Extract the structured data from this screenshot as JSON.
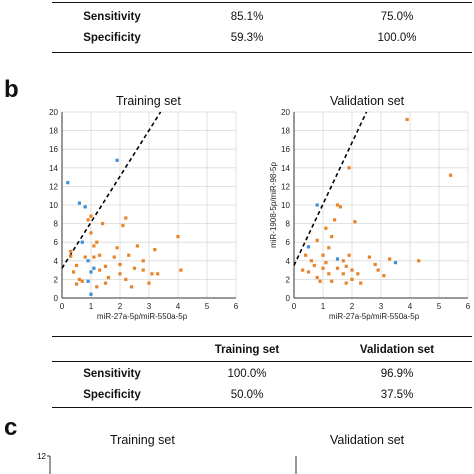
{
  "table_a": {
    "rows": [
      {
        "label": "Sensitivity",
        "v1": "85.1%",
        "v2": "75.0%"
      },
      {
        "label": "Specificity",
        "v1": "59.3%",
        "v2": "100.0%"
      }
    ]
  },
  "panel_b": {
    "letter": "b",
    "titles": [
      "Training set",
      "Validation set"
    ]
  },
  "table_b": {
    "headers": [
      "",
      "Training set",
      "Validation set"
    ],
    "rows": [
      {
        "label": "Sensitivity",
        "v1": "100.0%",
        "v2": "96.9%"
      },
      {
        "label": "Specificity",
        "v1": "50.0%",
        "v2": "37.5%"
      }
    ]
  },
  "panel_c": {
    "letter": "c",
    "titles": [
      "Training set",
      "Validation set"
    ],
    "y_top_tick": "12"
  },
  "colors": {
    "orange": "#e8832a",
    "blue": "#3b8fd6",
    "grid": "#d9d9d9"
  },
  "chart_data": [
    {
      "type": "scatter",
      "title": "Training set",
      "xlabel": "miR-27a-5p/miR-550a-5p",
      "ylabel": "",
      "xlim": [
        0,
        6
      ],
      "ylim": [
        0,
        20
      ],
      "xticks": [
        "0",
        "1",
        "2",
        "3",
        "4",
        "5",
        "6"
      ],
      "yticks": [
        "0",
        "2",
        "4",
        "6",
        "8",
        "10",
        "12",
        "14",
        "16",
        "18",
        "20"
      ],
      "grid": true,
      "cutoff_line": {
        "style": "dashed",
        "x": [
          0,
          3.4
        ],
        "y": [
          3.2,
          20
        ]
      },
      "series": [
        {
          "color": "#3b8fd6",
          "points": [
            [
              0.2,
              12.4
            ],
            [
              0.6,
              10.2
            ],
            [
              0.8,
              9.8
            ],
            [
              1.9,
              14.8
            ],
            [
              0.7,
              6
            ],
            [
              0.9,
              4
            ],
            [
              0.9,
              1.8
            ],
            [
              1.0,
              2.8
            ],
            [
              1.0,
              0.4
            ],
            [
              1.1,
              3.2
            ]
          ]
        },
        {
          "color": "#e8832a",
          "points": [
            [
              0.3,
              5
            ],
            [
              0.5,
              3.5
            ],
            [
              0.5,
              1.5
            ],
            [
              0.3,
              4.5
            ],
            [
              0.4,
              2.8
            ],
            [
              0.6,
              2
            ],
            [
              0.7,
              1.8
            ],
            [
              0.8,
              4.4
            ],
            [
              0.9,
              8.4
            ],
            [
              1.0,
              8.8
            ],
            [
              1.0,
              7
            ],
            [
              1.1,
              4.4
            ],
            [
              1.1,
              5.6
            ],
            [
              1.2,
              6
            ],
            [
              1.2,
              1.2
            ],
            [
              1.3,
              3
            ],
            [
              1.3,
              4.6
            ],
            [
              1.4,
              8
            ],
            [
              1.5,
              1.6
            ],
            [
              1.5,
              3.4
            ],
            [
              1.6,
              2.2
            ],
            [
              1.8,
              4.4
            ],
            [
              1.9,
              5.4
            ],
            [
              2.0,
              3.6
            ],
            [
              2.0,
              2.6
            ],
            [
              2.1,
              7.8
            ],
            [
              2.2,
              8.6
            ],
            [
              2.2,
              2
            ],
            [
              2.3,
              4.6
            ],
            [
              2.4,
              1.2
            ],
            [
              2.5,
              3.2
            ],
            [
              2.6,
              5.6
            ],
            [
              2.8,
              4
            ],
            [
              2.8,
              3
            ],
            [
              3.0,
              1.6
            ],
            [
              3.1,
              2.6
            ],
            [
              3.2,
              5.2
            ],
            [
              3.3,
              2.6
            ],
            [
              4.0,
              6.6
            ],
            [
              4.1,
              3
            ]
          ]
        }
      ]
    },
    {
      "type": "scatter",
      "title": "Validation set",
      "xlabel": "miR-27a-5p/miR-550a-5p",
      "ylabel": "miR-1908-5p/miR-98-5p",
      "xlim": [
        0,
        6
      ],
      "ylim": [
        0,
        20
      ],
      "xticks": [
        "0",
        "1",
        "2",
        "3",
        "4",
        "5",
        "6"
      ],
      "yticks": [
        "0",
        "2",
        "4",
        "6",
        "8",
        "10",
        "12",
        "14",
        "16",
        "18",
        "20"
      ],
      "grid": true,
      "cutoff_line": {
        "style": "dashed",
        "x": [
          0,
          2.5
        ],
        "y": [
          3.5,
          20
        ]
      },
      "series": [
        {
          "color": "#3b8fd6",
          "points": [
            [
              0.5,
              5.5
            ],
            [
              0.8,
              10
            ],
            [
              1.5,
              4.2
            ],
            [
              3.5,
              3.8
            ]
          ]
        },
        {
          "color": "#e8832a",
          "points": [
            [
              0.3,
              3
            ],
            [
              0.4,
              4.6
            ],
            [
              0.5,
              2.8
            ],
            [
              0.6,
              4
            ],
            [
              0.7,
              3.5
            ],
            [
              0.8,
              6.2
            ],
            [
              0.8,
              2.2
            ],
            [
              0.9,
              1.8
            ],
            [
              1.0,
              4.6
            ],
            [
              1.0,
              3.2
            ],
            [
              1.1,
              7.5
            ],
            [
              1.1,
              3.8
            ],
            [
              1.2,
              5.4
            ],
            [
              1.2,
              2.6
            ],
            [
              1.3,
              6.6
            ],
            [
              1.3,
              1.8
            ],
            [
              1.4,
              8.4
            ],
            [
              1.5,
              10
            ],
            [
              1.5,
              3.2
            ],
            [
              1.6,
              9.8
            ],
            [
              1.7,
              4
            ],
            [
              1.7,
              2.6
            ],
            [
              1.8,
              1.6
            ],
            [
              1.8,
              3.4
            ],
            [
              1.9,
              4.6
            ],
            [
              1.9,
              14
            ],
            [
              2.0,
              3
            ],
            [
              2.0,
              2
            ],
            [
              2.1,
              8.2
            ],
            [
              2.2,
              2.6
            ],
            [
              2.3,
              1.6
            ],
            [
              2.6,
              4.4
            ],
            [
              2.8,
              3.6
            ],
            [
              2.9,
              3
            ],
            [
              3.1,
              2.4
            ],
            [
              3.3,
              4.2
            ],
            [
              3.9,
              19.2
            ],
            [
              4.3,
              4
            ],
            [
              5.4,
              13.2
            ]
          ]
        }
      ]
    }
  ]
}
